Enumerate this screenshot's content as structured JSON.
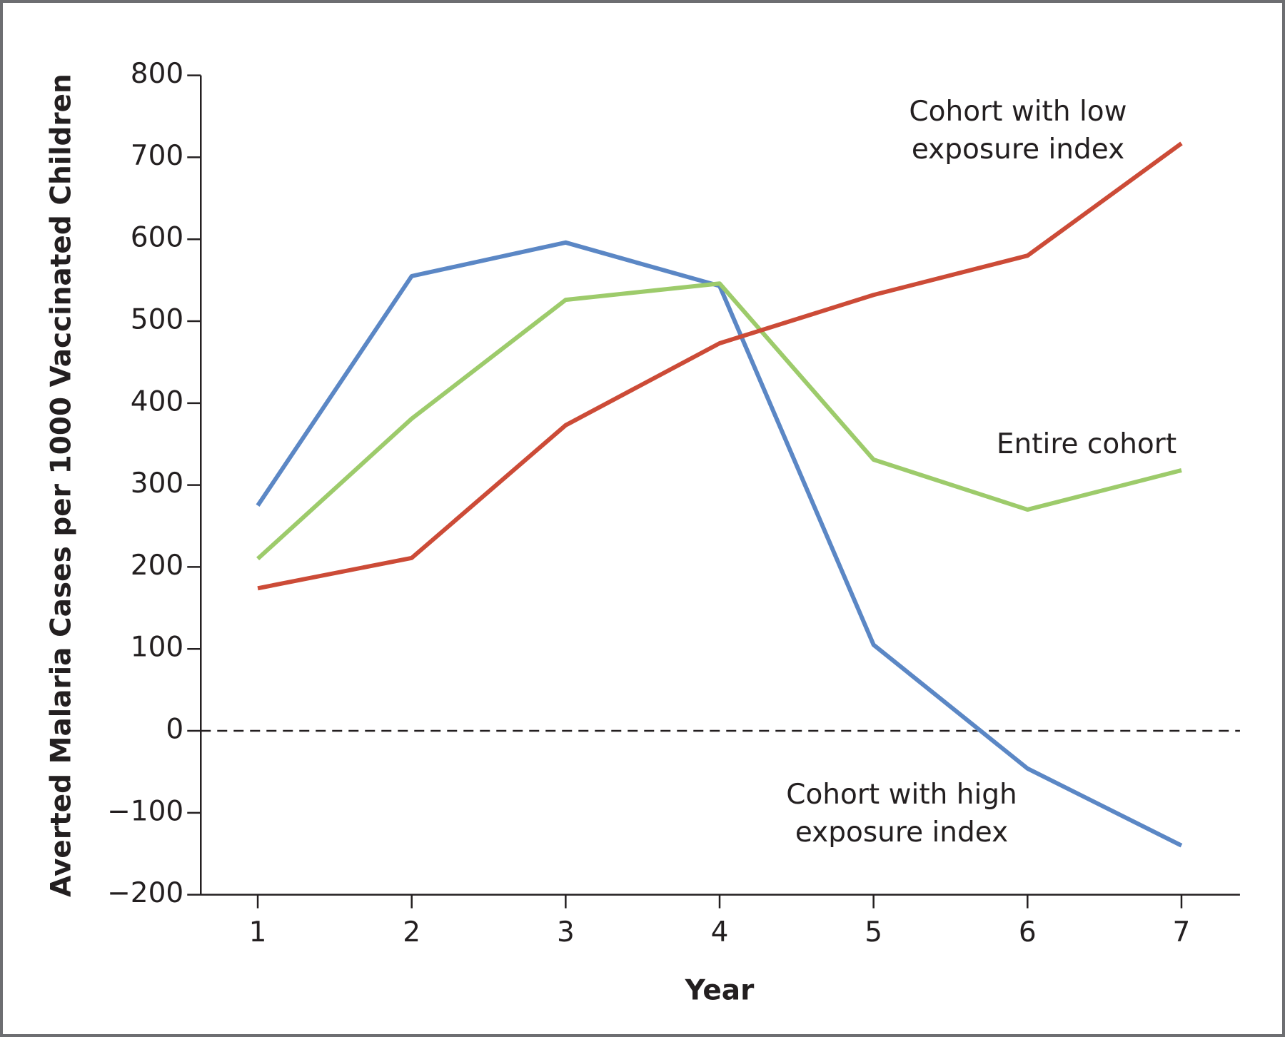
{
  "chart_data": {
    "type": "line",
    "x_label": "Year",
    "y_label": "Averted Malaria Cases per 1000 Vaccinated Children",
    "x": [
      1,
      2,
      3,
      4,
      5,
      6,
      7
    ],
    "xlim": [
      0.63,
      7.38
    ],
    "xticks": [
      1,
      2,
      3,
      4,
      5,
      6,
      7
    ],
    "ylim": [
      -200,
      800
    ],
    "yticks": [
      {
        "value": -200,
        "label": "−200"
      },
      {
        "value": -100,
        "label": "−100"
      },
      0,
      100,
      200,
      300,
      400,
      500,
      600,
      700,
      800
    ],
    "zero_line": true,
    "series": [
      {
        "name": "Cohort with high exposure index",
        "color": "#5b87c5",
        "values": [
          275,
          555,
          596,
          543,
          105,
          -46,
          -140
        ]
      },
      {
        "name": "Entire cohort",
        "color": "#9dcb6b",
        "values": [
          210,
          381,
          526,
          546,
          331,
          270,
          318
        ]
      },
      {
        "name": "Cohort with low exposure index",
        "color": "#cc4b37",
        "values": [
          174,
          211,
          373,
          473,
          532,
          580,
          717
        ]
      }
    ]
  }
}
